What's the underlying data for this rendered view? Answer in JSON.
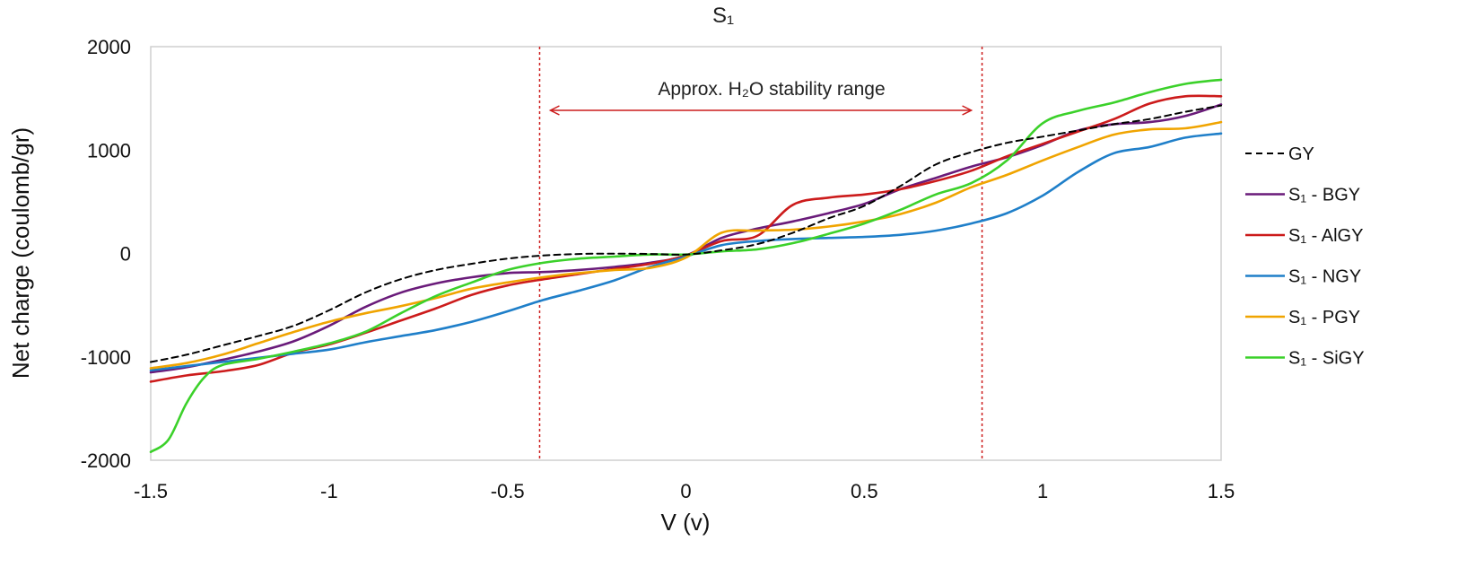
{
  "chart_data": {
    "type": "line",
    "title": "S₁",
    "xlabel": "V (v)",
    "ylabel": "Net charge (coulomb/gr)",
    "xlim": [
      -1.5,
      1.5
    ],
    "ylim": [
      -2000,
      2000
    ],
    "x_ticks": [
      "-1.5",
      "-1",
      "-0.5",
      "0",
      "0.5",
      "1",
      "1.5"
    ],
    "y_ticks": [
      "2000",
      "1000",
      "0",
      "-1000",
      "-2000"
    ],
    "grid": false,
    "legend_position": "right",
    "annotation": {
      "text": "Approx. H₂O stability range",
      "x_start": -0.41,
      "x_end": 0.83
    },
    "series": [
      {
        "name": "GY",
        "style": "dashed",
        "color": "#000000",
        "points": [
          [
            -1.5,
            -1050
          ],
          [
            -1.4,
            -980
          ],
          [
            -1.3,
            -890
          ],
          [
            -1.2,
            -800
          ],
          [
            -1.1,
            -700
          ],
          [
            -1.0,
            -550
          ],
          [
            -0.9,
            -380
          ],
          [
            -0.8,
            -250
          ],
          [
            -0.7,
            -160
          ],
          [
            -0.6,
            -100
          ],
          [
            -0.5,
            -50
          ],
          [
            -0.4,
            -20
          ],
          [
            -0.3,
            -5
          ],
          [
            -0.2,
            -2
          ],
          [
            -0.1,
            -5
          ],
          [
            0.0,
            -10
          ],
          [
            0.1,
            30
          ],
          [
            0.2,
            90
          ],
          [
            0.3,
            200
          ],
          [
            0.4,
            340
          ],
          [
            0.5,
            460
          ],
          [
            0.6,
            650
          ],
          [
            0.7,
            860
          ],
          [
            0.8,
            980
          ],
          [
            0.9,
            1070
          ],
          [
            1.0,
            1130
          ],
          [
            1.1,
            1190
          ],
          [
            1.2,
            1250
          ],
          [
            1.3,
            1300
          ],
          [
            1.4,
            1370
          ],
          [
            1.5,
            1430
          ]
        ]
      },
      {
        "name": "S₁ - BGY",
        "style": "solid",
        "color": "#6a1b7a",
        "points": [
          [
            -1.5,
            -1150
          ],
          [
            -1.4,
            -1100
          ],
          [
            -1.3,
            -1030
          ],
          [
            -1.2,
            -950
          ],
          [
            -1.1,
            -850
          ],
          [
            -1.0,
            -700
          ],
          [
            -0.9,
            -520
          ],
          [
            -0.8,
            -380
          ],
          [
            -0.7,
            -290
          ],
          [
            -0.6,
            -230
          ],
          [
            -0.5,
            -190
          ],
          [
            -0.4,
            -180
          ],
          [
            -0.3,
            -160
          ],
          [
            -0.2,
            -130
          ],
          [
            -0.1,
            -90
          ],
          [
            0.0,
            -20
          ],
          [
            0.1,
            150
          ],
          [
            0.2,
            240
          ],
          [
            0.3,
            310
          ],
          [
            0.4,
            390
          ],
          [
            0.5,
            480
          ],
          [
            0.6,
            620
          ],
          [
            0.7,
            730
          ],
          [
            0.8,
            840
          ],
          [
            0.9,
            930
          ],
          [
            1.0,
            1050
          ],
          [
            1.1,
            1190
          ],
          [
            1.2,
            1250
          ],
          [
            1.3,
            1270
          ],
          [
            1.4,
            1330
          ],
          [
            1.5,
            1440
          ]
        ]
      },
      {
        "name": "S₁ - AlGY",
        "style": "solid",
        "color": "#cc1b1b",
        "points": [
          [
            -1.5,
            -1240
          ],
          [
            -1.4,
            -1180
          ],
          [
            -1.3,
            -1140
          ],
          [
            -1.2,
            -1080
          ],
          [
            -1.1,
            -960
          ],
          [
            -1.0,
            -880
          ],
          [
            -0.9,
            -770
          ],
          [
            -0.8,
            -650
          ],
          [
            -0.7,
            -530
          ],
          [
            -0.6,
            -400
          ],
          [
            -0.5,
            -310
          ],
          [
            -0.4,
            -250
          ],
          [
            -0.3,
            -200
          ],
          [
            -0.2,
            -150
          ],
          [
            -0.1,
            -100
          ],
          [
            0.0,
            -20
          ],
          [
            0.1,
            120
          ],
          [
            0.2,
            170
          ],
          [
            0.3,
            470
          ],
          [
            0.4,
            540
          ],
          [
            0.5,
            570
          ],
          [
            0.6,
            620
          ],
          [
            0.7,
            700
          ],
          [
            0.8,
            800
          ],
          [
            0.9,
            940
          ],
          [
            1.0,
            1060
          ],
          [
            1.1,
            1180
          ],
          [
            1.2,
            1300
          ],
          [
            1.3,
            1450
          ],
          [
            1.4,
            1520
          ],
          [
            1.5,
            1520
          ]
        ]
      },
      {
        "name": "S₁ - NGY",
        "style": "solid",
        "color": "#1f7fc9",
        "points": [
          [
            -1.5,
            -1130
          ],
          [
            -1.4,
            -1090
          ],
          [
            -1.3,
            -1050
          ],
          [
            -1.2,
            -1010
          ],
          [
            -1.1,
            -970
          ],
          [
            -1.0,
            -930
          ],
          [
            -0.9,
            -860
          ],
          [
            -0.8,
            -800
          ],
          [
            -0.7,
            -740
          ],
          [
            -0.6,
            -660
          ],
          [
            -0.5,
            -560
          ],
          [
            -0.4,
            -450
          ],
          [
            -0.3,
            -360
          ],
          [
            -0.2,
            -260
          ],
          [
            -0.1,
            -130
          ],
          [
            0.0,
            -30
          ],
          [
            0.1,
            80
          ],
          [
            0.2,
            120
          ],
          [
            0.3,
            140
          ],
          [
            0.4,
            150
          ],
          [
            0.5,
            160
          ],
          [
            0.6,
            180
          ],
          [
            0.7,
            220
          ],
          [
            0.8,
            290
          ],
          [
            0.9,
            390
          ],
          [
            1.0,
            560
          ],
          [
            1.1,
            790
          ],
          [
            1.2,
            970
          ],
          [
            1.3,
            1030
          ],
          [
            1.4,
            1120
          ],
          [
            1.5,
            1160
          ]
        ]
      },
      {
        "name": "S₁ - PGY",
        "style": "solid",
        "color": "#f0a400",
        "points": [
          [
            -1.5,
            -1110
          ],
          [
            -1.4,
            -1060
          ],
          [
            -1.3,
            -980
          ],
          [
            -1.2,
            -870
          ],
          [
            -1.1,
            -760
          ],
          [
            -1.0,
            -660
          ],
          [
            -0.9,
            -580
          ],
          [
            -0.8,
            -510
          ],
          [
            -0.7,
            -430
          ],
          [
            -0.6,
            -340
          ],
          [
            -0.5,
            -280
          ],
          [
            -0.4,
            -230
          ],
          [
            -0.3,
            -190
          ],
          [
            -0.2,
            -160
          ],
          [
            -0.1,
            -140
          ],
          [
            0.0,
            -40
          ],
          [
            0.1,
            200
          ],
          [
            0.2,
            220
          ],
          [
            0.3,
            230
          ],
          [
            0.4,
            260
          ],
          [
            0.5,
            310
          ],
          [
            0.6,
            380
          ],
          [
            0.7,
            490
          ],
          [
            0.8,
            640
          ],
          [
            0.9,
            760
          ],
          [
            1.0,
            900
          ],
          [
            1.1,
            1030
          ],
          [
            1.2,
            1150
          ],
          [
            1.3,
            1200
          ],
          [
            1.4,
            1210
          ],
          [
            1.5,
            1270
          ]
        ]
      },
      {
        "name": "S₁ - SiGY",
        "style": "solid",
        "color": "#3bd12a",
        "points": [
          [
            -1.5,
            -1920
          ],
          [
            -1.45,
            -1800
          ],
          [
            -1.4,
            -1450
          ],
          [
            -1.35,
            -1200
          ],
          [
            -1.3,
            -1080
          ],
          [
            -1.2,
            -1020
          ],
          [
            -1.1,
            -950
          ],
          [
            -1.0,
            -870
          ],
          [
            -0.9,
            -760
          ],
          [
            -0.8,
            -580
          ],
          [
            -0.7,
            -410
          ],
          [
            -0.6,
            -280
          ],
          [
            -0.5,
            -160
          ],
          [
            -0.4,
            -90
          ],
          [
            -0.3,
            -50
          ],
          [
            -0.2,
            -30
          ],
          [
            -0.1,
            -10
          ],
          [
            0.0,
            -10
          ],
          [
            0.1,
            20
          ],
          [
            0.2,
            40
          ],
          [
            0.3,
            100
          ],
          [
            0.4,
            190
          ],
          [
            0.5,
            290
          ],
          [
            0.6,
            420
          ],
          [
            0.7,
            570
          ],
          [
            0.8,
            680
          ],
          [
            0.9,
            900
          ],
          [
            1.0,
            1260
          ],
          [
            1.1,
            1380
          ],
          [
            1.2,
            1460
          ],
          [
            1.3,
            1560
          ],
          [
            1.4,
            1640
          ],
          [
            1.5,
            1680
          ]
        ]
      }
    ]
  }
}
